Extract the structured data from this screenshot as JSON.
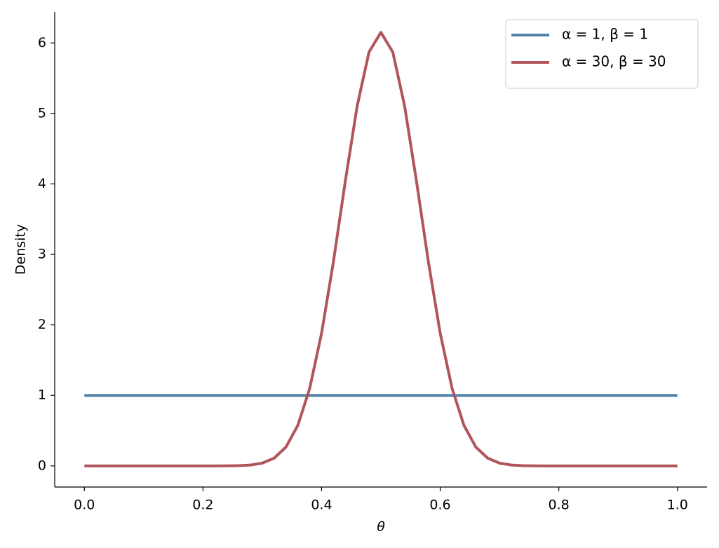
{
  "chart_data": {
    "type": "line",
    "xlabel": "θ",
    "ylabel": "Density",
    "x": [
      0,
      0.02,
      0.04,
      0.06,
      0.08,
      0.1,
      0.12,
      0.14,
      0.16,
      0.18,
      0.2,
      0.22,
      0.24,
      0.26,
      0.28,
      0.3,
      0.32,
      0.34,
      0.36,
      0.38,
      0.4,
      0.42,
      0.44,
      0.46,
      0.48,
      0.5,
      0.52,
      0.54,
      0.56,
      0.58,
      0.6,
      0.62,
      0.64,
      0.66,
      0.68,
      0.7,
      0.72,
      0.74,
      0.76,
      0.78,
      0.8,
      0.82,
      0.84,
      0.86,
      0.88,
      0.9,
      0.92,
      0.94,
      0.96,
      0.98,
      1
    ],
    "series": [
      {
        "name": "α = 1, β = 1",
        "color": "#5382aa",
        "values": [
          1,
          1,
          1,
          1,
          1,
          1,
          1,
          1,
          1,
          1,
          1,
          1,
          1,
          1,
          1,
          1,
          1,
          1,
          1,
          1,
          1,
          1,
          1,
          1,
          1,
          1,
          1,
          1,
          1,
          1,
          1,
          1,
          1,
          1,
          1,
          1,
          1,
          1,
          1,
          1,
          1,
          1,
          1,
          1,
          1,
          1,
          1,
          1,
          1,
          1,
          1
        ]
      },
      {
        "name": "α = 30, β = 30",
        "color": "#b0555b",
        "values": [
          0,
          0,
          0,
          0,
          0,
          0,
          0,
          0,
          0,
          0,
          0,
          0,
          0.001,
          0.003,
          0.012,
          0.039,
          0.11,
          0.268,
          0.576,
          1.101,
          1.883,
          2.899,
          4.038,
          5.105,
          5.871,
          6.15,
          5.871,
          5.105,
          4.038,
          2.899,
          1.883,
          1.101,
          0.576,
          0.268,
          0.11,
          0.039,
          0.012,
          0.003,
          0.001,
          0,
          0,
          0,
          0,
          0,
          0,
          0,
          0,
          0,
          0,
          0,
          0
        ]
      }
    ],
    "xlim": [
      -0.05,
      1.05
    ],
    "ylim": [
      -0.3,
      6.44
    ],
    "xticks": [
      {
        "value": 0,
        "label": "0.0"
      },
      {
        "value": 0.2,
        "label": "0.2"
      },
      {
        "value": 0.4,
        "label": "0.4"
      },
      {
        "value": 0.6,
        "label": "0.6"
      },
      {
        "value": 0.8,
        "label": "0.8"
      },
      {
        "value": 1,
        "label": "1.0"
      }
    ],
    "yticks": [
      0,
      1,
      2,
      3,
      4,
      5,
      6
    ],
    "legend": "upper right",
    "grid": false
  }
}
